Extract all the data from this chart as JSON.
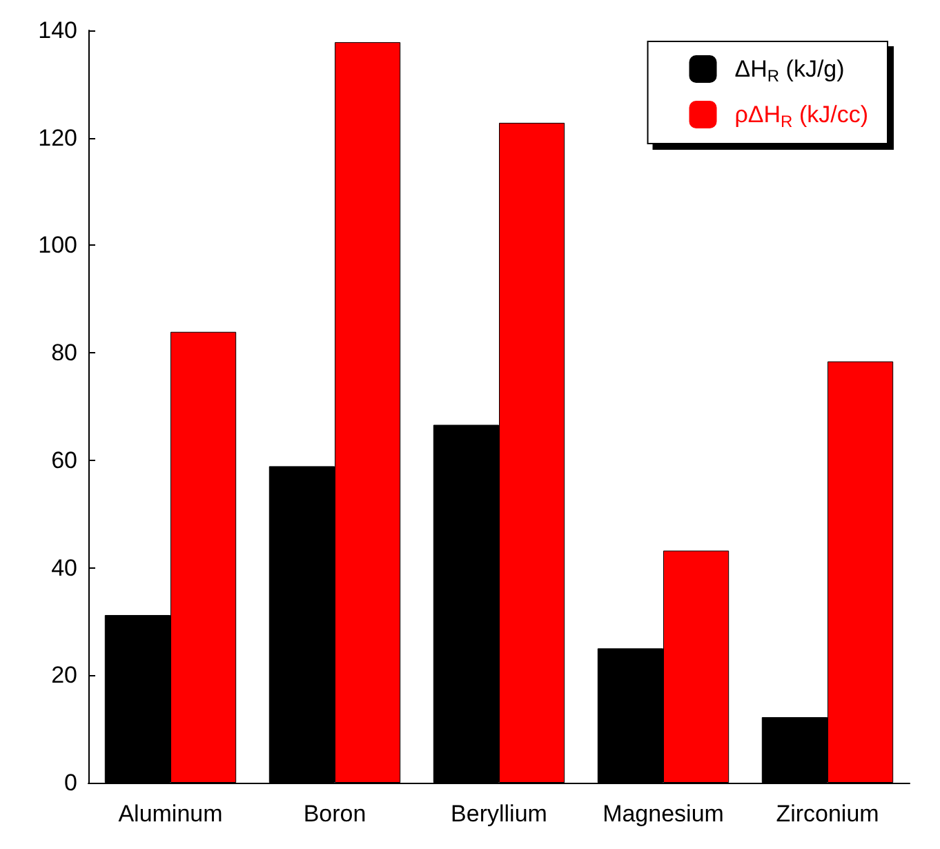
{
  "chart_data": {
    "type": "bar",
    "categories": [
      "Aluminum",
      "Boron",
      "Beryllium",
      "Magnesium",
      "Zirconium"
    ],
    "series": [
      {
        "name": "ΔH$_{R}$ (kJ/g)",
        "color": "#000000",
        "values": [
          31.2,
          58.9,
          66.6,
          25,
          12.2
        ]
      },
      {
        "name": "ρΔH$_{R}$ (kJ/cc)",
        "color": "#ff0000",
        "values": [
          83.9,
          137.8,
          122.8,
          43.2,
          78.4
        ]
      }
    ],
    "ylim": [
      0,
      140
    ],
    "yticks": [
      0,
      20,
      40,
      60,
      80,
      100,
      120,
      140
    ],
    "grid": false,
    "legend": "top right"
  }
}
